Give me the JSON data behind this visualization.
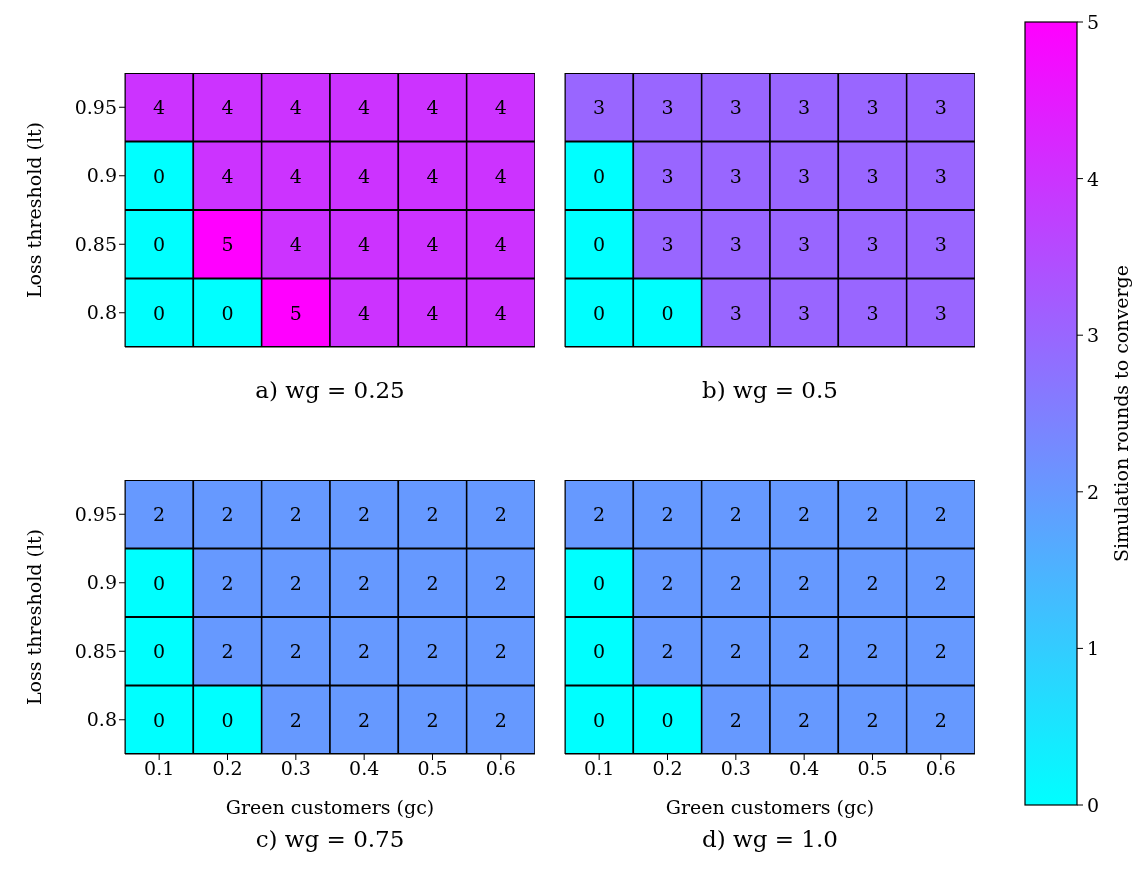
{
  "chart_data": [
    {
      "type": "heatmap",
      "title": "a) wg = 0.25",
      "ylabel": "Loss threshold (lt)",
      "categories": [
        "0.1",
        "0.2",
        "0.3",
        "0.4",
        "0.5",
        "0.6"
      ],
      "y_categories": [
        "0.95",
        "0.9",
        "0.85",
        "0.8"
      ],
      "cells": [
        [
          4,
          4,
          4,
          4,
          4,
          4
        ],
        [
          0,
          4,
          4,
          4,
          4,
          4
        ],
        [
          0,
          5,
          4,
          4,
          4,
          4
        ],
        [
          0,
          0,
          5,
          4,
          4,
          4
        ]
      ],
      "data_labels": true,
      "clim": [
        0,
        5
      ],
      "cticks": [
        0,
        1,
        2,
        3,
        4,
        5
      ],
      "clabel": "Simulation rounds to converge",
      "tick_labels": "y"
    },
    {
      "type": "heatmap",
      "title": "b) wg = 0.5",
      "categories": [
        "0.1",
        "0.2",
        "0.3",
        "0.4",
        "0.5",
        "0.6"
      ],
      "y_categories": [
        "0.95",
        "0.9",
        "0.85",
        "0.8"
      ],
      "cells": [
        [
          3,
          3,
          3,
          3,
          3,
          3
        ],
        [
          0,
          3,
          3,
          3,
          3,
          3
        ],
        [
          0,
          3,
          3,
          3,
          3,
          3
        ],
        [
          0,
          0,
          3,
          3,
          3,
          3
        ]
      ],
      "data_labels": true,
      "tick_labels": false
    },
    {
      "type": "heatmap",
      "title": "c) wg = 0.75",
      "xlabel": "Green customers (gc)",
      "ylabel": "Loss threshold (lt)",
      "categories": [
        "0.1",
        "0.2",
        "0.3",
        "0.4",
        "0.5",
        "0.6"
      ],
      "y_categories": [
        "0.95",
        "0.9",
        "0.85",
        "0.8"
      ],
      "cells": [
        [
          2,
          2,
          2,
          2,
          2,
          2
        ],
        [
          0,
          2,
          2,
          2,
          2,
          2
        ],
        [
          0,
          2,
          2,
          2,
          2,
          2
        ],
        [
          0,
          0,
          2,
          2,
          2,
          2
        ]
      ],
      "data_labels": true
    },
    {
      "type": "heatmap",
      "title": "d) wg = 1.0",
      "xlabel": "Green customers (gc)",
      "categories": [
        "0.1",
        "0.2",
        "0.3",
        "0.4",
        "0.5",
        "0.6"
      ],
      "y_categories": [
        "0.95",
        "0.9",
        "0.85",
        "0.8"
      ],
      "cells": [
        [
          2,
          2,
          2,
          2,
          2,
          2
        ],
        [
          0,
          2,
          2,
          2,
          2,
          2
        ],
        [
          0,
          2,
          2,
          2,
          2,
          2
        ],
        [
          0,
          0,
          2,
          2,
          2,
          2
        ]
      ],
      "data_labels": true,
      "tick_labels": "x"
    }
  ]
}
